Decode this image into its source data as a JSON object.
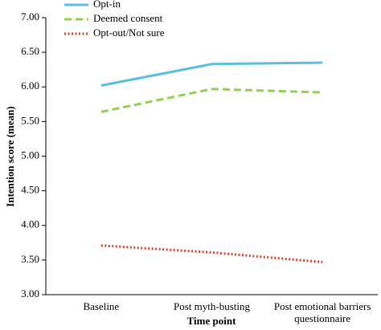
{
  "chart_data": {
    "type": "line",
    "y_label": "Intention score (mean)",
    "x_label": "Time point",
    "categories": [
      "Baseline",
      "Post myth-busting",
      "Post emotional barriers questionnaire"
    ],
    "series": [
      {
        "name": "Opt-in",
        "color": "#5bbde4",
        "dash": "solid",
        "values": [
          6.02,
          6.33,
          6.35
        ]
      },
      {
        "name": "Deemed consent",
        "color": "#92d050",
        "dash": "dashed",
        "values": [
          5.64,
          5.97,
          5.92
        ]
      },
      {
        "name": "Opt-out/Not sure",
        "color": "#d9432b",
        "dash": "dotted",
        "values": [
          3.71,
          3.61,
          3.47
        ]
      }
    ],
    "ylim": [
      3,
      7
    ],
    "yticks": [
      {
        "value": 3,
        "label": "3.00"
      },
      {
        "value": 3.5,
        "label": "3.50"
      },
      {
        "value": 4,
        "label": "4.00"
      },
      {
        "value": 4.5,
        "label": "4.50"
      },
      {
        "value": 5,
        "label": "5.00"
      },
      {
        "value": 5.5,
        "label": "5.50"
      },
      {
        "value": 6,
        "label": "6.00"
      },
      {
        "value": 6.5,
        "label": "6.50"
      },
      {
        "value": 7,
        "label": "7.00"
      }
    ],
    "grid": false,
    "legend": "top-left"
  }
}
